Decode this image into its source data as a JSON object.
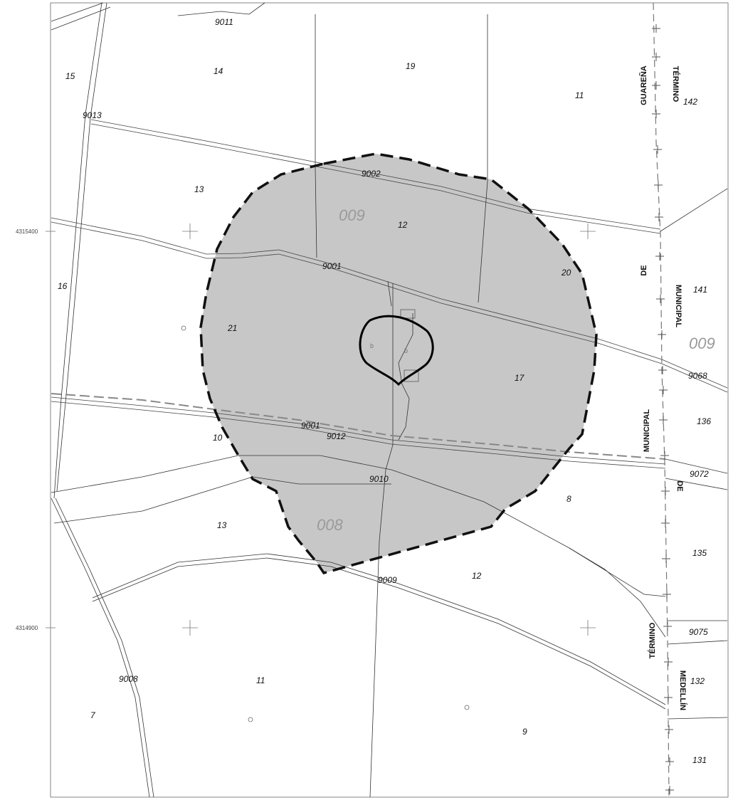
{
  "coordinates": {
    "northing_top": "4315400",
    "northing_bottom": "4314900"
  },
  "zones": [
    {
      "label": "009"
    },
    {
      "label": "008"
    },
    {
      "label": "009"
    }
  ],
  "parcels": [
    "15",
    "14",
    "19",
    "11",
    "142",
    "13",
    "12",
    "16",
    "20",
    "141",
    "21",
    "17",
    "10",
    "136",
    "8",
    "13",
    "135",
    "12",
    "11",
    "132",
    "7",
    "9",
    "131"
  ],
  "roads": [
    "9011",
    "9013",
    "9002",
    "9001",
    "9068",
    "9001",
    "9012",
    "9072",
    "9010",
    "9009",
    "9075",
    "9008"
  ],
  "boundary_labels": {
    "left_col": [
      "GUAREÑA",
      "DE",
      "MUNICIPAL",
      "TÉRMINO"
    ],
    "right_col": [
      "TÉRMINO",
      "MUNICIPAL",
      "DE",
      "MEDELLÍN"
    ]
  },
  "colors": {
    "buffer_fill": "#c7c7c7",
    "zone_label": "#9a9a9a",
    "line": "#333333",
    "boundary_dash": "#777777"
  }
}
